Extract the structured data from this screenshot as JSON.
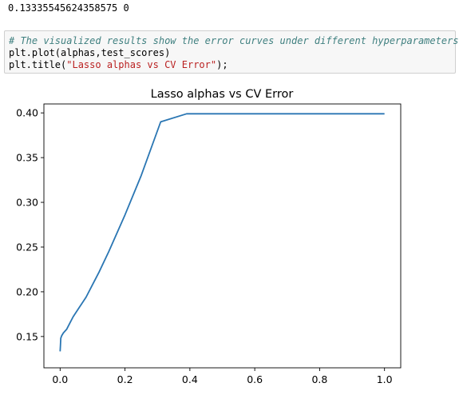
{
  "output": {
    "text": "0.13335545624358575 0"
  },
  "code_cell": {
    "comment": "# The visualized results show the error curves under different hyperparameters",
    "line2": "plt.plot(alphas,test_scores)",
    "line3_prefix": "plt.title(",
    "line3_string": "\"Lasso alphas vs CV Error\"",
    "line3_suffix": ");"
  },
  "chart_data": {
    "type": "line",
    "title": "Lasso alphas vs CV Error",
    "xlabel": "",
    "ylabel": "",
    "xlim": [
      -0.05,
      1.05
    ],
    "ylim": [
      0.115,
      0.41
    ],
    "xticks": [
      0.0,
      0.2,
      0.4,
      0.6,
      0.8,
      1.0
    ],
    "xtick_labels": [
      "0.0",
      "0.2",
      "0.4",
      "0.6",
      "0.8",
      "1.0"
    ],
    "yticks": [
      0.15,
      0.2,
      0.25,
      0.3,
      0.35,
      0.4
    ],
    "ytick_labels": [
      "0.15",
      "0.20",
      "0.25",
      "0.30",
      "0.35",
      "0.40"
    ],
    "grid": false,
    "line_color": "#2a76b3",
    "series": [
      {
        "x": [
          0.0,
          0.001,
          0.002,
          0.005,
          0.01,
          0.02,
          0.03,
          0.04,
          0.06,
          0.08,
          0.1,
          0.12,
          0.15,
          0.2,
          0.25,
          0.31,
          0.39,
          0.5,
          0.6,
          0.7,
          0.8,
          0.9,
          1.0
        ],
        "y": [
          0.1334,
          0.14,
          0.148,
          0.151,
          0.154,
          0.158,
          0.165,
          0.172,
          0.183,
          0.194,
          0.208,
          0.222,
          0.245,
          0.286,
          0.33,
          0.39,
          0.399,
          0.399,
          0.399,
          0.399,
          0.399,
          0.399,
          0.399
        ]
      }
    ]
  }
}
